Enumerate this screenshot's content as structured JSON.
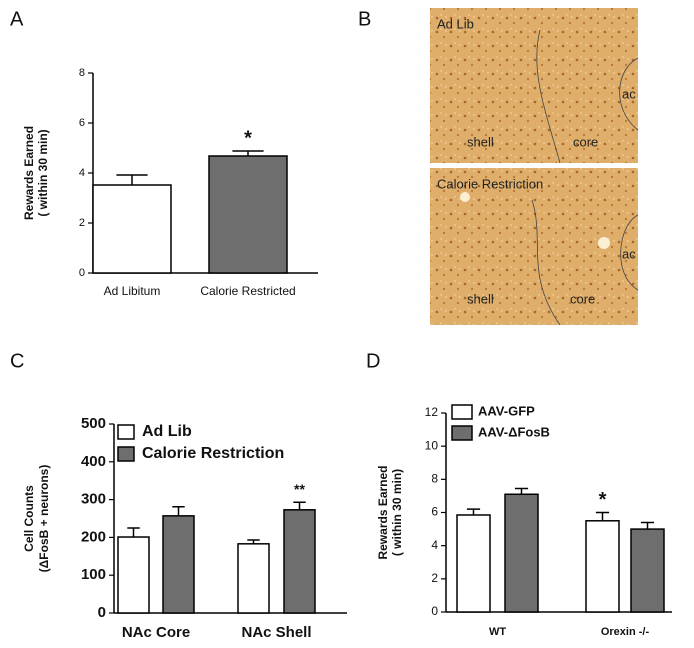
{
  "panel_labels": [
    "A",
    "B",
    "C",
    "D"
  ],
  "micrographs": [
    {
      "title": "Ad Lib",
      "labels": [
        "shell",
        "core",
        "ac"
      ]
    },
    {
      "title": "Calorie Restriction",
      "labels": [
        "shell",
        "core",
        "ac"
      ]
    }
  ],
  "chart_data": [
    {
      "type": "bar",
      "ylabel": [
        "Rewards Earned",
        "( within 30 min)"
      ],
      "categories": [
        "Ad Libitum",
        "Calorie Restricted"
      ],
      "series": [
        {
          "colors": [
            "#ffffff",
            "#6e6e6e"
          ],
          "values": [
            3.52,
            4.68
          ],
          "errors": [
            0.4,
            0.2
          ]
        }
      ],
      "ylim": [
        0,
        8
      ],
      "yticks": [
        0,
        2,
        4,
        6,
        8
      ],
      "annotations": [
        "*"
      ]
    },
    {
      "type": "bar",
      "ylabel": [
        "Cell Counts",
        "(ΔFosB + neurons)"
      ],
      "categories": [
        "NAc Core",
        "NAc Shell"
      ],
      "series": [
        {
          "name": "Ad Lib",
          "color": "#ffffff",
          "values": [
            201,
            183
          ],
          "errors": [
            24,
            10
          ]
        },
        {
          "name": "Calorie Restriction",
          "color": "#6e6e6e",
          "values": [
            257,
            273
          ],
          "errors": [
            24,
            20
          ]
        }
      ],
      "ylim": [
        0,
        500
      ],
      "yticks": [
        0,
        100,
        200,
        300,
        400,
        500
      ],
      "annotations": [
        "**"
      ]
    },
    {
      "type": "bar",
      "ylabel": [
        "Rewards Earned",
        "( within 30 min)"
      ],
      "categories": [
        "WT",
        "Orexin -/-"
      ],
      "series": [
        {
          "name": "AAV-GFP",
          "color": "#ffffff",
          "values": [
            5.85,
            5.5
          ],
          "errors": [
            0.35,
            0.5
          ]
        },
        {
          "name": "AAV-ΔFosB",
          "color": "#6e6e6e",
          "values": [
            7.1,
            5.0
          ],
          "errors": [
            0.35,
            0.4
          ]
        }
      ],
      "ylim": [
        0,
        12
      ],
      "yticks": [
        0,
        2,
        4,
        6,
        8,
        10,
        12
      ],
      "annotations": [
        "*"
      ]
    }
  ]
}
